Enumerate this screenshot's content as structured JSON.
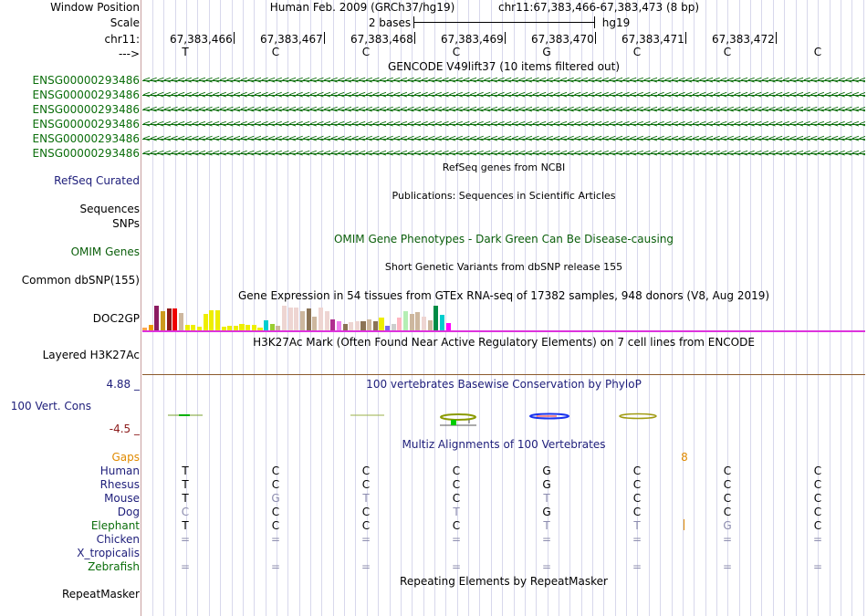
{
  "header": {
    "window_position_label": "Window Position",
    "assembly": "Human Feb. 2009 (GRCh37/hg19)",
    "region": "chr11:67,383,466-67,383,473 (8 bp)",
    "scale_label": "Scale",
    "scale_text": "2 bases",
    "scale_db": "hg19",
    "chrom_label": "chr11:",
    "strand_label": "--->",
    "coordinates": [
      "67,383,466",
      "67,383,467",
      "67,383,468",
      "67,383,469",
      "67,383,470",
      "67,383,471",
      "67,383,472"
    ],
    "sequence": [
      "T",
      "C",
      "C",
      "C",
      "G",
      "C",
      "C",
      "C"
    ]
  },
  "gencode": {
    "title": "GENCODE V49lift37 (10 items filtered out)",
    "items": [
      "ENSG00000293486",
      "ENSG00000293486",
      "ENSG00000293486",
      "ENSG00000293486",
      "ENSG00000293486",
      "ENSG00000293486"
    ],
    "strand_glyphs": "<<<<<<<<<<<<<<<<<<<<<<<<<<<<<<<<<<<<<<<<<<<<<<<<<<<<<<<<<<<<<<<<<<<<<<<<<<<<<<<<<<<<<<<<<<<<<<<<<<<<<<<<<<<<<<<<<<<<<<<<<<<<<<<<<<<<<<<<<<<<<<<"
  },
  "refseq": {
    "title": "RefSeq genes from NCBI",
    "label": "RefSeq Curated"
  },
  "publications": {
    "title": "Publications: Sequences in Scientific Articles",
    "label1": "Sequences",
    "label2": "SNPs"
  },
  "omim": {
    "title": "OMIM Gene Phenotypes - Dark Green Can Be Disease-causing",
    "label": "OMIM Genes"
  },
  "dbsnp": {
    "title": "Short Genetic Variants from dbSNP release 155",
    "label": "Common dbSNP(155)"
  },
  "gtex": {
    "title": "Gene Expression in 54 tissues from GTEx RNA-seq of 17382 samples, 948 donors (V8, Aug 2019)",
    "label": "DOC2GP",
    "bars": [
      {
        "h": 3,
        "color": "#ffa54f"
      },
      {
        "h": 6,
        "color": "#ee9a00"
      },
      {
        "h": 27,
        "color": "#8b1c62"
      },
      {
        "h": 21,
        "color": "#cd9b1d"
      },
      {
        "h": 24,
        "color": "#8b1a1a"
      },
      {
        "h": 24,
        "color": "#ee0000"
      },
      {
        "h": 19,
        "color": "#cdb79e"
      },
      {
        "h": 6,
        "color": "#eeee00"
      },
      {
        "h": 6,
        "color": "#eeee00"
      },
      {
        "h": 4,
        "color": "#eeee00"
      },
      {
        "h": 18,
        "color": "#eeee00"
      },
      {
        "h": 22,
        "color": "#eeee00"
      },
      {
        "h": 22,
        "color": "#eeee00"
      },
      {
        "h": 4,
        "color": "#eeee00"
      },
      {
        "h": 5,
        "color": "#eeee00"
      },
      {
        "h": 5,
        "color": "#eeee00"
      },
      {
        "h": 7,
        "color": "#eeee00"
      },
      {
        "h": 6,
        "color": "#eeee00"
      },
      {
        "h": 6,
        "color": "#eeee00"
      },
      {
        "h": 3,
        "color": "#eeee00"
      },
      {
        "h": 11,
        "color": "#00ced1"
      },
      {
        "h": 7,
        "color": "#9acd32"
      },
      {
        "h": 5,
        "color": "#cdb79e"
      },
      {
        "h": 27,
        "color": "#eed5d2"
      },
      {
        "h": 25,
        "color": "#eed5d2"
      },
      {
        "h": 25,
        "color": "#eed5d2"
      },
      {
        "h": 21,
        "color": "#cdb79e"
      },
      {
        "h": 24,
        "color": "#8b7355"
      },
      {
        "h": 15,
        "color": "#cdb79e"
      },
      {
        "h": 25,
        "color": "#eed5d2"
      },
      {
        "h": 21,
        "color": "#eed5d2"
      },
      {
        "h": 12,
        "color": "#b03090"
      },
      {
        "h": 10,
        "color": "#ee82ee"
      },
      {
        "h": 7,
        "color": "#8b7355"
      },
      {
        "h": 9,
        "color": "#eed5d2"
      },
      {
        "h": 10,
        "color": "#eed5d2"
      },
      {
        "h": 10,
        "color": "#8b7355"
      },
      {
        "h": 12,
        "color": "#cdb79e"
      },
      {
        "h": 10,
        "color": "#8b7355"
      },
      {
        "h": 14,
        "color": "#eeee00"
      },
      {
        "h": 5,
        "color": "#7a67ee"
      },
      {
        "h": 7,
        "color": "#cdcdcd"
      },
      {
        "h": 14,
        "color": "#ffb6c1"
      },
      {
        "h": 21,
        "color": "#b4eeb4"
      },
      {
        "h": 18,
        "color": "#cdb79e"
      },
      {
        "h": 20,
        "color": "#cdb79e"
      },
      {
        "h": 15,
        "color": "#eed5d2"
      },
      {
        "h": 11,
        "color": "#cdb79e"
      },
      {
        "h": 27,
        "color": "#008b45"
      },
      {
        "h": 17,
        "color": "#00cdcd"
      },
      {
        "h": 8,
        "color": "#ff00ff"
      }
    ]
  },
  "h3k27ac": {
    "title": "H3K27Ac Mark (Often Found Near Active Regulatory Elements) on 7 cell lines from ENCODE",
    "label": "Layered H3K27Ac"
  },
  "conservation": {
    "title": "100 vertebrates Basewise Conservation by PhyloP",
    "label": "100 Vert. Cons",
    "max_label": "4.88 _",
    "min_label": "-4.5 _"
  },
  "multiz": {
    "title": "Multiz Alignments of 100 Vertebrates",
    "gaps_label": "Gaps",
    "gap_count": "8",
    "species": [
      {
        "name": "Human",
        "bases": [
          "T",
          "C",
          "C",
          "C",
          "G",
          "C",
          "C",
          "C"
        ],
        "faint": [
          0,
          0,
          0,
          0,
          0,
          0,
          0,
          0
        ]
      },
      {
        "name": "Rhesus",
        "bases": [
          "T",
          "C",
          "C",
          "C",
          "G",
          "C",
          "C",
          "C"
        ],
        "faint": [
          0,
          0,
          0,
          0,
          0,
          0,
          0,
          0
        ]
      },
      {
        "name": "Mouse",
        "bases": [
          "T",
          "G",
          "T",
          "C",
          "T",
          "C",
          "C",
          "C"
        ],
        "faint": [
          0,
          1,
          1,
          0,
          1,
          0,
          0,
          0
        ]
      },
      {
        "name": "Dog",
        "bases": [
          "C",
          "C",
          "C",
          "T",
          "G",
          "C",
          "C",
          "C"
        ],
        "faint": [
          1,
          0,
          0,
          1,
          0,
          0,
          0,
          0
        ]
      },
      {
        "name": "Elephant",
        "bases": [
          "T",
          "C",
          "C",
          "C",
          "T",
          "T",
          "G",
          "C"
        ],
        "faint": [
          0,
          0,
          0,
          0,
          1,
          1,
          1,
          0
        ]
      },
      {
        "name": "Chicken",
        "bases": [
          "=",
          "=",
          "=",
          "=",
          "=",
          "=",
          "=",
          "="
        ],
        "faint": [
          1,
          1,
          1,
          1,
          1,
          1,
          1,
          1
        ]
      },
      {
        "name": "X_tropicalis",
        "bases": [
          "",
          "",
          "",
          "",
          "",
          "",
          "",
          ""
        ],
        "faint": [
          0,
          0,
          0,
          0,
          0,
          0,
          0,
          0
        ]
      },
      {
        "name": "Zebrafish",
        "bases": [
          "=",
          "=",
          "=",
          "=",
          "=",
          "=",
          "=",
          "="
        ],
        "faint": [
          1,
          1,
          1,
          1,
          1,
          1,
          1,
          1
        ]
      }
    ]
  },
  "repeatmasker": {
    "title": "Repeating Elements by RepeatMasker",
    "label": "RepeatMasker"
  },
  "colors": {
    "gene_green": "#0b6e0b",
    "navy": "#1d1d7a",
    "gap_orange": "#e08a00",
    "gtex_line": "#dd33dd",
    "h3k_line": "#8b5a2b"
  }
}
